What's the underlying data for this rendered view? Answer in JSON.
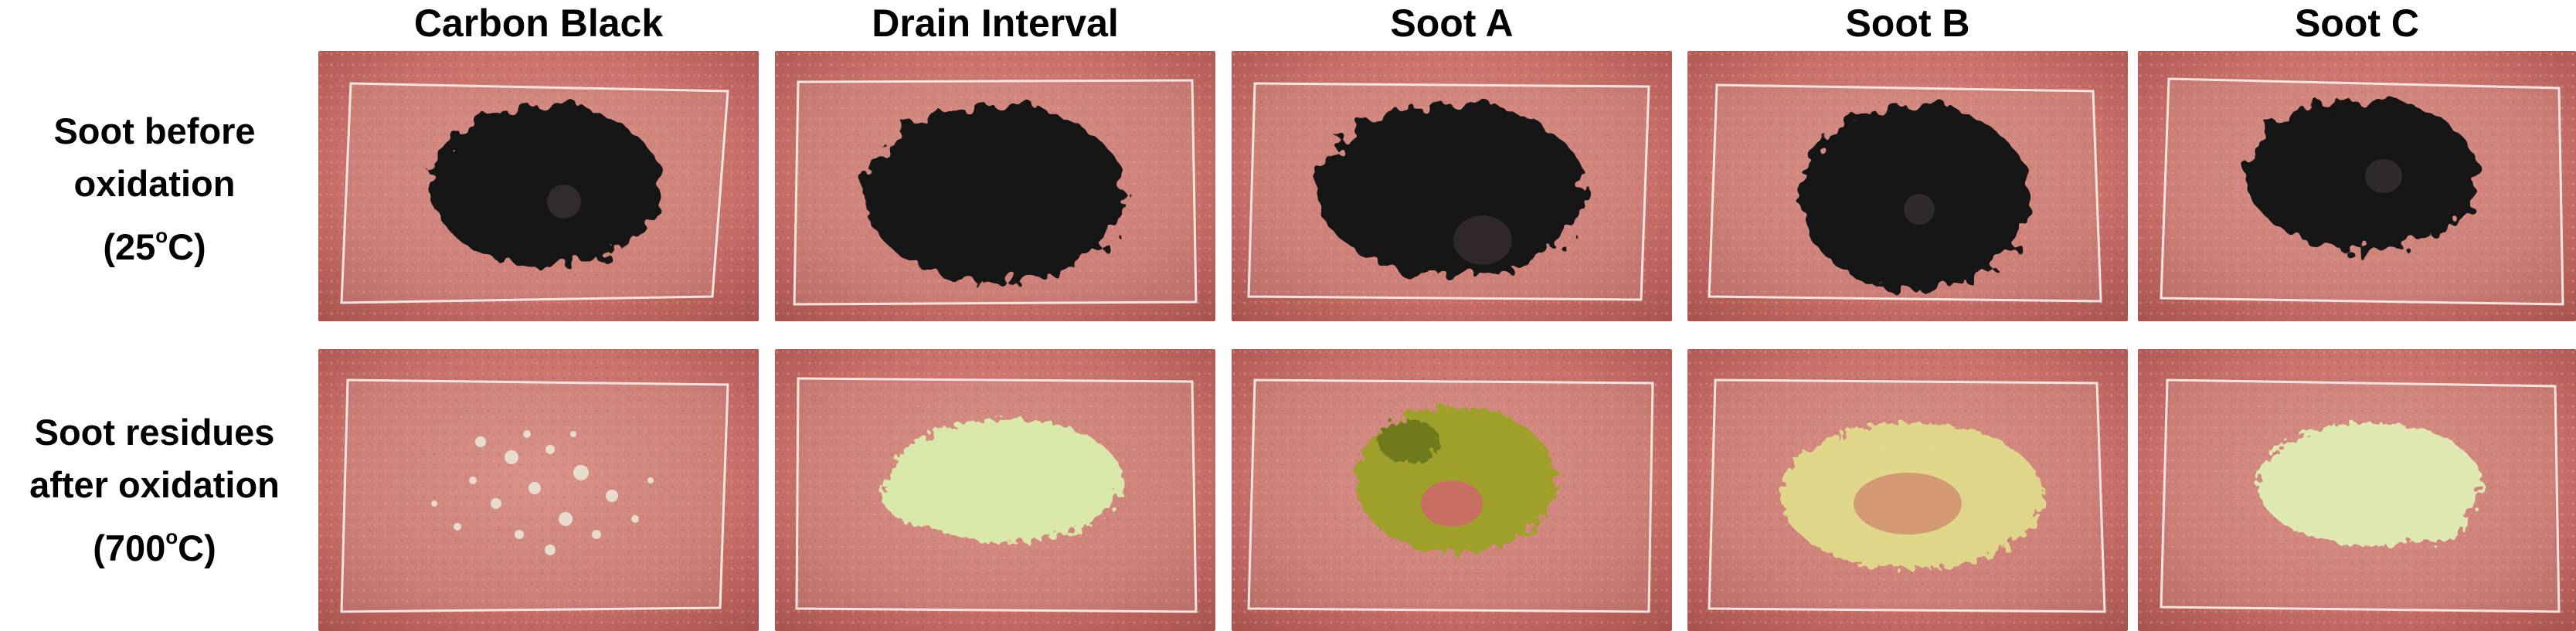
{
  "columns": [
    "Carbon Black",
    "Drain Interval",
    "Soot A",
    "Soot B",
    "Soot C"
  ],
  "rows": [
    {
      "line1": "Soot before",
      "line2": "oxidation",
      "line3_prefix": "(25",
      "degree_mark": "o",
      "line3_suffix": "C)"
    },
    {
      "line1": "Soot residues",
      "line2": "after oxidation",
      "line3_prefix": "(700",
      "degree_mark": "o",
      "line3_suffix": "C)"
    }
  ],
  "colors": {
    "background": "#c9736b",
    "soot": "#141414",
    "residue_carbon_black": "#e9e4d6",
    "residue_drain_interval": "#d9e7a8",
    "residue_soot_a": "#9fa02a",
    "residue_soot_b": "#e2e48c",
    "residue_soot_c": "#dfe8b0"
  }
}
